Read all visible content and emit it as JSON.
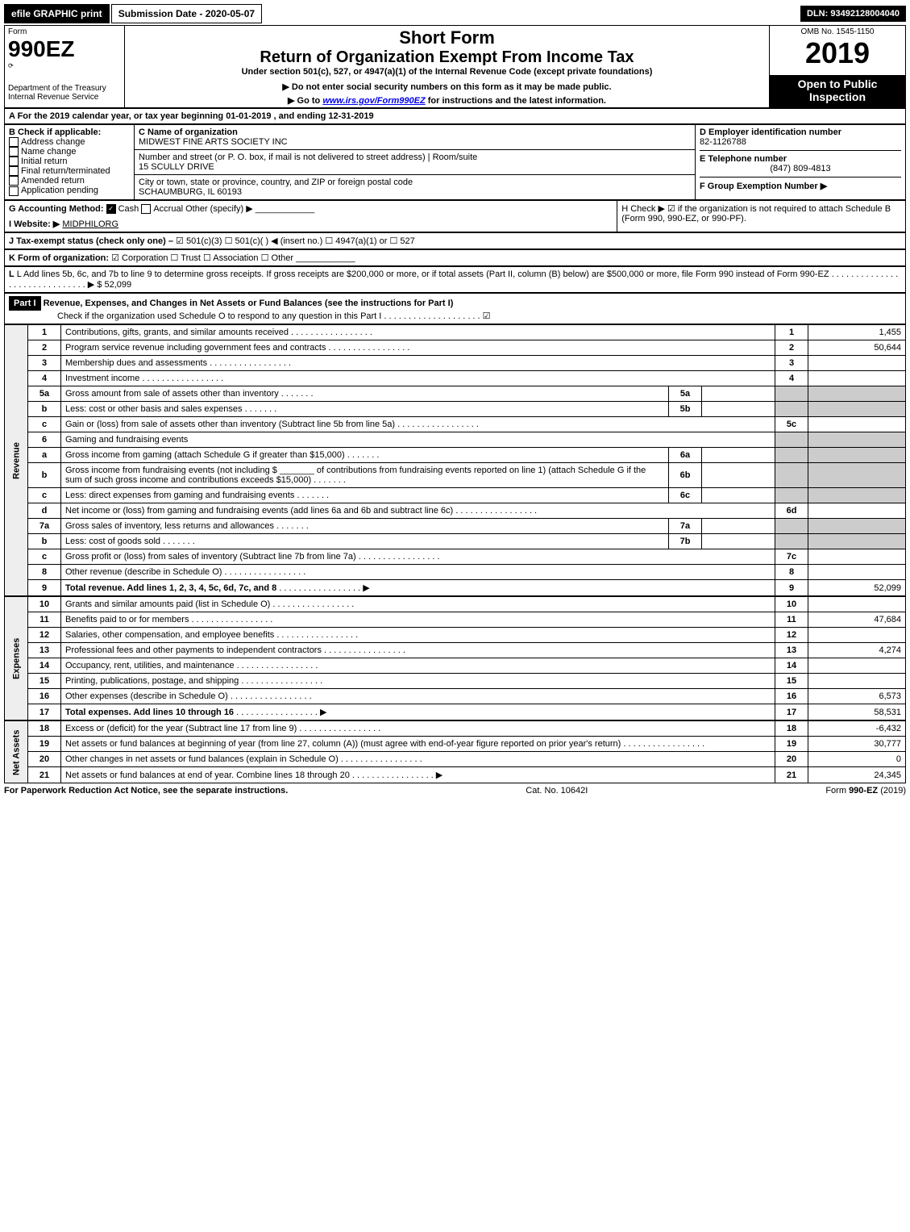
{
  "topBar": {
    "efile": "efile GRAPHIC print",
    "submission": "Submission Date - 2020-05-07",
    "dln": "DLN: 93492128004040"
  },
  "header": {
    "formWord": "Form",
    "formNum": "990EZ",
    "dept": "Department of the Treasury",
    "irs": "Internal Revenue Service",
    "shortForm": "Short Form",
    "returnTitle": "Return of Organization Exempt From Income Tax",
    "underSection": "Under section 501(c), 527, or 4947(a)(1) of the Internal Revenue Code (except private foundations)",
    "warn1": "Do not enter social security numbers on this form as it may be made public.",
    "warn2": "Go to www.irs.gov/Form990EZ for instructions and the latest information.",
    "omb": "OMB No. 1545-1150",
    "year": "2019",
    "open": "Open to Public Inspection"
  },
  "lineA": {
    "text": "A For the 2019 calendar year, or tax year beginning 01-01-2019 , and ending 12-31-2019"
  },
  "boxB": {
    "label": "B Check if applicable:",
    "opts": [
      "Address change",
      "Name change",
      "Initial return",
      "Final return/terminated",
      "Amended return",
      "Application pending"
    ]
  },
  "boxC": {
    "nameLabel": "C Name of organization",
    "name": "MIDWEST FINE ARTS SOCIETY INC",
    "addrLabel": "Number and street (or P. O. box, if mail is not delivered to street address)",
    "addr": "15 SCULLY DRIVE",
    "roomLabel": "Room/suite",
    "cityLabel": "City or town, state or province, country, and ZIP or foreign postal code",
    "city": "SCHAUMBURG, IL  60193"
  },
  "boxD": {
    "label": "D Employer identification number",
    "val": "82-1126788"
  },
  "boxE": {
    "label": "E Telephone number",
    "val": "(847) 809-4813"
  },
  "boxF": {
    "label": "F Group Exemption Number ▶"
  },
  "boxG": {
    "label": "G Accounting Method:",
    "cash": "Cash",
    "accrual": "Accrual",
    "other": "Other (specify) ▶"
  },
  "boxH": {
    "text": "H Check ▶ ☑ if the organization is not required to attach Schedule B (Form 990, 990-EZ, or 990-PF)."
  },
  "boxI": {
    "label": "I Website: ▶",
    "val": "MIDPHILORG"
  },
  "boxJ": {
    "label": "J Tax-exempt status (check only one) –",
    "text": "☑ 501(c)(3)  ☐ 501(c)(  ) ◀ (insert no.)  ☐ 4947(a)(1) or  ☐ 527"
  },
  "boxK": {
    "label": "K Form of organization:",
    "text": "☑ Corporation  ☐ Trust  ☐ Association  ☐ Other"
  },
  "boxL": {
    "text": "L Add lines 5b, 6c, and 7b to line 9 to determine gross receipts. If gross receipts are $200,000 or more, or if total assets (Part II, column (B) below) are $500,000 or more, file Form 990 instead of Form 990-EZ",
    "amount": "▶ $ 52,099"
  },
  "part1": {
    "label": "Part I",
    "title": "Revenue, Expenses, and Changes in Net Assets or Fund Balances (see the instructions for Part I)",
    "checkNote": "Check if the organization used Schedule O to respond to any question in this Part I",
    "checkMark": "☑"
  },
  "sections": {
    "revenue": "Revenue",
    "expenses": "Expenses",
    "netassets": "Net Assets"
  },
  "rows": [
    {
      "n": "1",
      "d": "Contributions, gifts, grants, and similar amounts received",
      "rn": "1",
      "v": "1,455"
    },
    {
      "n": "2",
      "d": "Program service revenue including government fees and contracts",
      "rn": "2",
      "v": "50,644"
    },
    {
      "n": "3",
      "d": "Membership dues and assessments",
      "rn": "3",
      "v": ""
    },
    {
      "n": "4",
      "d": "Investment income",
      "rn": "4",
      "v": ""
    },
    {
      "n": "5a",
      "d": "Gross amount from sale of assets other than inventory",
      "sn": "5a",
      "sv": ""
    },
    {
      "n": "b",
      "d": "Less: cost or other basis and sales expenses",
      "sn": "5b",
      "sv": ""
    },
    {
      "n": "c",
      "d": "Gain or (loss) from sale of assets other than inventory (Subtract line 5b from line 5a)",
      "rn": "5c",
      "v": ""
    },
    {
      "n": "6",
      "d": "Gaming and fundraising events"
    },
    {
      "n": "a",
      "d": "Gross income from gaming (attach Schedule G if greater than $15,000)",
      "sn": "6a",
      "sv": ""
    },
    {
      "n": "b",
      "d": "Gross income from fundraising events (not including $ _______ of contributions from fundraising events reported on line 1) (attach Schedule G if the sum of such gross income and contributions exceeds $15,000)",
      "sn": "6b",
      "sv": ""
    },
    {
      "n": "c",
      "d": "Less: direct expenses from gaming and fundraising events",
      "sn": "6c",
      "sv": ""
    },
    {
      "n": "d",
      "d": "Net income or (loss) from gaming and fundraising events (add lines 6a and 6b and subtract line 6c)",
      "rn": "6d",
      "v": ""
    },
    {
      "n": "7a",
      "d": "Gross sales of inventory, less returns and allowances",
      "sn": "7a",
      "sv": ""
    },
    {
      "n": "b",
      "d": "Less: cost of goods sold",
      "sn": "7b",
      "sv": ""
    },
    {
      "n": "c",
      "d": "Gross profit or (loss) from sales of inventory (Subtract line 7b from line 7a)",
      "rn": "7c",
      "v": ""
    },
    {
      "n": "8",
      "d": "Other revenue (describe in Schedule O)",
      "rn": "8",
      "v": ""
    },
    {
      "n": "9",
      "d": "Total revenue. Add lines 1, 2, 3, 4, 5c, 6d, 7c, and 8",
      "rn": "9",
      "v": "52,099",
      "bold": true,
      "arrow": true
    }
  ],
  "expRows": [
    {
      "n": "10",
      "d": "Grants and similar amounts paid (list in Schedule O)",
      "rn": "10",
      "v": ""
    },
    {
      "n": "11",
      "d": "Benefits paid to or for members",
      "rn": "11",
      "v": "47,684"
    },
    {
      "n": "12",
      "d": "Salaries, other compensation, and employee benefits",
      "rn": "12",
      "v": ""
    },
    {
      "n": "13",
      "d": "Professional fees and other payments to independent contractors",
      "rn": "13",
      "v": "4,274"
    },
    {
      "n": "14",
      "d": "Occupancy, rent, utilities, and maintenance",
      "rn": "14",
      "v": ""
    },
    {
      "n": "15",
      "d": "Printing, publications, postage, and shipping",
      "rn": "15",
      "v": ""
    },
    {
      "n": "16",
      "d": "Other expenses (describe in Schedule O)",
      "rn": "16",
      "v": "6,573"
    },
    {
      "n": "17",
      "d": "Total expenses. Add lines 10 through 16",
      "rn": "17",
      "v": "58,531",
      "bold": true,
      "arrow": true
    }
  ],
  "naRows": [
    {
      "n": "18",
      "d": "Excess or (deficit) for the year (Subtract line 17 from line 9)",
      "rn": "18",
      "v": "-6,432"
    },
    {
      "n": "19",
      "d": "Net assets or fund balances at beginning of year (from line 27, column (A)) (must agree with end-of-year figure reported on prior year's return)",
      "rn": "19",
      "v": "30,777"
    },
    {
      "n": "20",
      "d": "Other changes in net assets or fund balances (explain in Schedule O)",
      "rn": "20",
      "v": "0"
    },
    {
      "n": "21",
      "d": "Net assets or fund balances at end of year. Combine lines 18 through 20",
      "rn": "21",
      "v": "24,345",
      "arrow": true
    }
  ],
  "footer": {
    "left": "For Paperwork Reduction Act Notice, see the separate instructions.",
    "mid": "Cat. No. 10642I",
    "right": "Form 990-EZ (2019)"
  }
}
